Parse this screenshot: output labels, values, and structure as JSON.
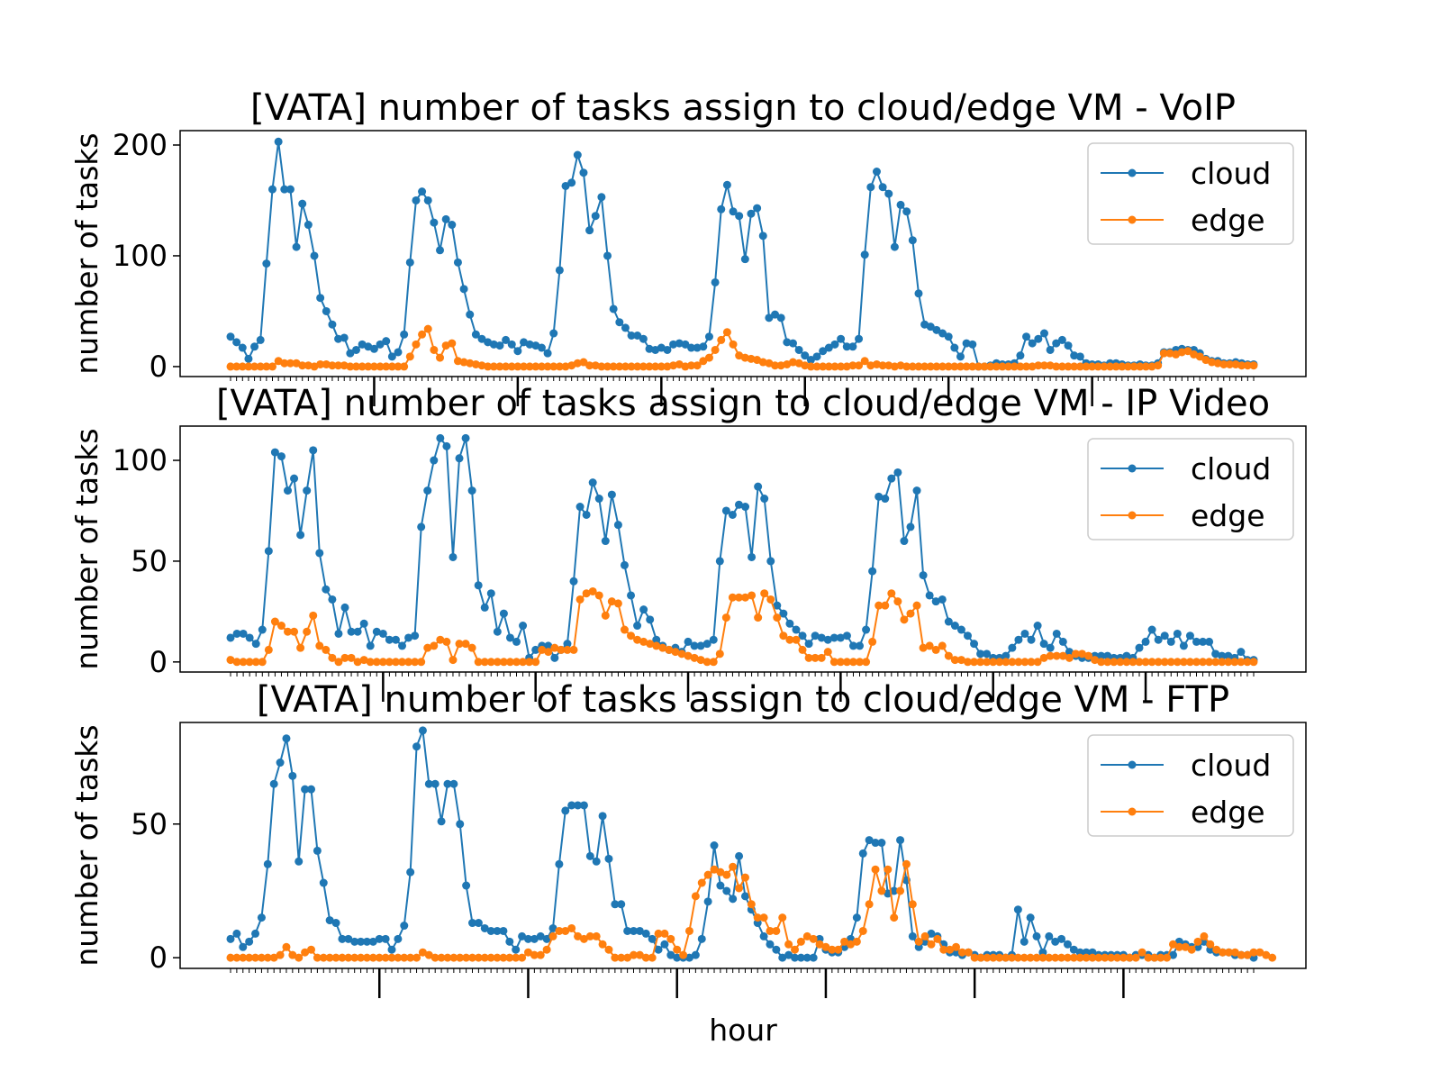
{
  "colors": {
    "cloud": "#1f77b4",
    "edge": "#ff7f0e"
  },
  "x_axis": {
    "label": "hour"
  },
  "chart_data": [
    {
      "type": "line",
      "title": "[VATA] number of tasks assign to cloud/edge VM - VoIP",
      "ylabel": "number of tasks",
      "xlabel": "hour",
      "ylim": [
        -9,
        213
      ],
      "yticks": [
        0,
        100,
        200
      ],
      "legend": "top-right",
      "series": [
        {
          "name": "cloud",
          "values": [
            27,
            22,
            17,
            7,
            18,
            24,
            93,
            160,
            203,
            160,
            160,
            108,
            147,
            128,
            100,
            62,
            50,
            38,
            25,
            26,
            12,
            15,
            20,
            18,
            16,
            20,
            23,
            9,
            13,
            29,
            94,
            150,
            158,
            150,
            130,
            105,
            133,
            128,
            94,
            70,
            47,
            29,
            25,
            22,
            20,
            19,
            24,
            20,
            14,
            22,
            20,
            19,
            17,
            12,
            30,
            87,
            163,
            166,
            191,
            175,
            123,
            136,
            153,
            100,
            52,
            40,
            35,
            28,
            28,
            25,
            16,
            15,
            17,
            15,
            20,
            21,
            20,
            17,
            17,
            18,
            27,
            76,
            142,
            164,
            140,
            136,
            97,
            138,
            143,
            118,
            44,
            47,
            44,
            22,
            21,
            15,
            10,
            6,
            9,
            14,
            17,
            20,
            25,
            18,
            18,
            25,
            101,
            162,
            176,
            162,
            156,
            108,
            146,
            140,
            114,
            66,
            38,
            36,
            33,
            30,
            27,
            17,
            9,
            21,
            20,
            0,
            0,
            1,
            3,
            2,
            2,
            3,
            10,
            27,
            21,
            25,
            30,
            15,
            21,
            24,
            19,
            10,
            9,
            3,
            2,
            2,
            1,
            3,
            3,
            2,
            1,
            1,
            2,
            1,
            1,
            3,
            13,
            13,
            15,
            16,
            15,
            15,
            12,
            7,
            5,
            5,
            3,
            3,
            4,
            3,
            2,
            2
          ],
          "note": ""
        },
        {
          "name": "edge",
          "values": [
            0,
            0,
            0,
            0,
            0,
            0,
            0,
            0,
            5,
            3,
            3,
            3,
            1,
            1,
            0,
            2,
            2,
            1,
            1,
            1,
            0,
            0,
            0,
            0,
            0,
            0,
            0,
            0,
            0,
            0,
            9,
            20,
            29,
            34,
            15,
            8,
            19,
            21,
            5,
            4,
            3,
            2,
            1,
            0,
            0,
            0,
            0,
            0,
            0,
            0,
            0,
            0,
            0,
            0,
            0,
            0,
            0,
            1,
            3,
            4,
            1,
            1,
            0,
            0,
            0,
            0,
            0,
            0,
            0,
            0,
            0,
            0,
            0,
            0,
            1,
            2,
            0,
            1,
            1,
            5,
            8,
            15,
            24,
            31,
            20,
            10,
            8,
            7,
            6,
            4,
            3,
            1,
            1,
            2,
            4,
            3,
            1,
            0,
            0,
            0,
            0,
            0,
            0,
            0,
            1,
            1,
            5,
            1,
            2,
            1,
            1,
            0,
            1,
            0,
            0,
            0,
            0,
            0,
            0,
            0,
            0,
            0,
            0,
            0,
            0,
            0,
            0,
            0,
            0,
            0,
            0,
            0,
            0,
            0,
            0,
            1,
            1,
            1,
            0,
            0,
            0,
            0,
            0,
            0,
            0,
            0,
            0,
            0,
            0,
            0,
            0,
            0,
            0,
            0,
            0,
            1,
            12,
            12,
            11,
            13,
            14,
            11,
            9,
            6,
            4,
            3,
            2,
            2,
            2,
            1,
            1,
            1
          ]
        }
      ]
    },
    {
      "type": "line",
      "title": "[VATA] number of tasks assign to cloud/edge VM - IP Video",
      "ylabel": "number of tasks",
      "xlabel": "hour",
      "ylim": [
        -5,
        117
      ],
      "yticks": [
        0,
        50,
        100
      ],
      "legend": "top-right",
      "series": [
        {
          "name": "cloud",
          "values": [
            12,
            14,
            14,
            12,
            9,
            16,
            55,
            104,
            102,
            85,
            91,
            63,
            85,
            105,
            54,
            36,
            31,
            14,
            27,
            15,
            15,
            19,
            8,
            15,
            14,
            11,
            11,
            8,
            12,
            13,
            67,
            85,
            100,
            111,
            107,
            52,
            101,
            111,
            85,
            38,
            27,
            34,
            15,
            24,
            12,
            10,
            18,
            2,
            6,
            8,
            8,
            2,
            6,
            9,
            40,
            77,
            73,
            89,
            81,
            60,
            83,
            68,
            48,
            33,
            18,
            26,
            21,
            11,
            8,
            6,
            7,
            5,
            10,
            8,
            8,
            9,
            11,
            50,
            75,
            73,
            78,
            77,
            52,
            87,
            81,
            50,
            28,
            24,
            19,
            16,
            13,
            9,
            13,
            12,
            11,
            12,
            12,
            13,
            8,
            8,
            16,
            45,
            82,
            81,
            91,
            94,
            60,
            67,
            85,
            43,
            33,
            30,
            31,
            20,
            18,
            16,
            13,
            9,
            4,
            4,
            2,
            2,
            3,
            7,
            11,
            14,
            11,
            18,
            9,
            7,
            14,
            10,
            5,
            3,
            2,
            2,
            3,
            3,
            3,
            2,
            2,
            3,
            2,
            7,
            10,
            16,
            11,
            13,
            10,
            14,
            8,
            13,
            10,
            10,
            10,
            4,
            3,
            3,
            2,
            5,
            1,
            1
          ]
        },
        {
          "name": "edge",
          "values": [
            1,
            0,
            0,
            0,
            0,
            0,
            6,
            20,
            18,
            15,
            15,
            7,
            15,
            23,
            8,
            6,
            2,
            0,
            2,
            2,
            0,
            1,
            0,
            0,
            0,
            0,
            0,
            0,
            0,
            0,
            0,
            7,
            8,
            11,
            10,
            1,
            9,
            9,
            7,
            0,
            0,
            0,
            0,
            0,
            0,
            0,
            0,
            0,
            0,
            6,
            5,
            7,
            6,
            6,
            6,
            31,
            34,
            35,
            33,
            23,
            30,
            29,
            16,
            13,
            11,
            10,
            9,
            8,
            7,
            6,
            5,
            4,
            3,
            2,
            1,
            0,
            0,
            4,
            22,
            32,
            32,
            32,
            33,
            22,
            34,
            31,
            22,
            13,
            11,
            11,
            6,
            2,
            2,
            2,
            5,
            0,
            0,
            0,
            0,
            0,
            0,
            10,
            28,
            28,
            34,
            30,
            21,
            24,
            28,
            7,
            8,
            6,
            8,
            3,
            1,
            1,
            0,
            0,
            0,
            0,
            0,
            0,
            0,
            0,
            0,
            0,
            0,
            0,
            2,
            3,
            3,
            3,
            2,
            4,
            4,
            3,
            1,
            0,
            0,
            0,
            0,
            0,
            0,
            0,
            0,
            0,
            0,
            0,
            0,
            0,
            0,
            0,
            0,
            0,
            0,
            0,
            0,
            0,
            0,
            0,
            0,
            0
          ]
        }
      ]
    },
    {
      "type": "line",
      "title": "[VATA] number of tasks assign to cloud/edge VM - FTP",
      "ylabel": "number of tasks",
      "xlabel": "hour",
      "ylim": [
        -4,
        88
      ],
      "yticks": [
        0,
        50
      ],
      "legend": "top-right",
      "series": [
        {
          "name": "cloud",
          "values": [
            7,
            9,
            4,
            6,
            9,
            15,
            35,
            65,
            73,
            82,
            68,
            36,
            63,
            63,
            40,
            28,
            14,
            13,
            7,
            7,
            6,
            6,
            6,
            6,
            7,
            7,
            3,
            7,
            12,
            32,
            79,
            85,
            65,
            65,
            51,
            65,
            65,
            50,
            27,
            13,
            13,
            11,
            10,
            10,
            10,
            6,
            3,
            8,
            7,
            7,
            8,
            7,
            11,
            35,
            55,
            57,
            57,
            57,
            38,
            36,
            53,
            37,
            20,
            20,
            10,
            10,
            10,
            9,
            7,
            3,
            5,
            1,
            0,
            0,
            0,
            1,
            7,
            21,
            42,
            27,
            25,
            22,
            38,
            23,
            18,
            13,
            8,
            5,
            3,
            0,
            1,
            0,
            0,
            0,
            0,
            7,
            3,
            2,
            2,
            4,
            7,
            15,
            39,
            44,
            43,
            43,
            24,
            25,
            44,
            29,
            8,
            4,
            6,
            9,
            8,
            5,
            2,
            2,
            1,
            2,
            1,
            0,
            1,
            1,
            1,
            0,
            1,
            18,
            6,
            15,
            8,
            2,
            8,
            6,
            7,
            5,
            3,
            2,
            2,
            2,
            1,
            1,
            1,
            1,
            1,
            0,
            1,
            1,
            1,
            0,
            1,
            1,
            1,
            6,
            5,
            4,
            4,
            6,
            3,
            2,
            2,
            2,
            1,
            1,
            1,
            0
          ]
        },
        {
          "name": "edge",
          "values": [
            0,
            0,
            0,
            0,
            0,
            0,
            0,
            0,
            1,
            4,
            1,
            0,
            2,
            3,
            0,
            0,
            0,
            0,
            0,
            0,
            0,
            0,
            0,
            0,
            0,
            0,
            0,
            0,
            0,
            0,
            0,
            2,
            1,
            0,
            0,
            0,
            0,
            0,
            0,
            0,
            0,
            0,
            0,
            0,
            0,
            0,
            0,
            0,
            2,
            1,
            1,
            3,
            8,
            10,
            10,
            11,
            8,
            7,
            8,
            8,
            5,
            3,
            0,
            0,
            0,
            1,
            1,
            0,
            0,
            9,
            9,
            7,
            3,
            1,
            10,
            23,
            28,
            31,
            33,
            32,
            31,
            34,
            26,
            30,
            20,
            15,
            15,
            10,
            10,
            15,
            5,
            3,
            6,
            8,
            7,
            5,
            4,
            3,
            3,
            6,
            5,
            6,
            10,
            20,
            33,
            25,
            33,
            15,
            25,
            35,
            20,
            6,
            8,
            5,
            7,
            3,
            3,
            4,
            2,
            2,
            0,
            0,
            0,
            0,
            0,
            0,
            0,
            0,
            0,
            0,
            0,
            0,
            0,
            0,
            0,
            0,
            0,
            0,
            0,
            0,
            0,
            0,
            0,
            0,
            0,
            0,
            0,
            2,
            0,
            0,
            0,
            0,
            5,
            4,
            4,
            3,
            6,
            8,
            5,
            3,
            2,
            2,
            2,
            1,
            1,
            2,
            2,
            1,
            0
          ]
        }
      ]
    }
  ]
}
